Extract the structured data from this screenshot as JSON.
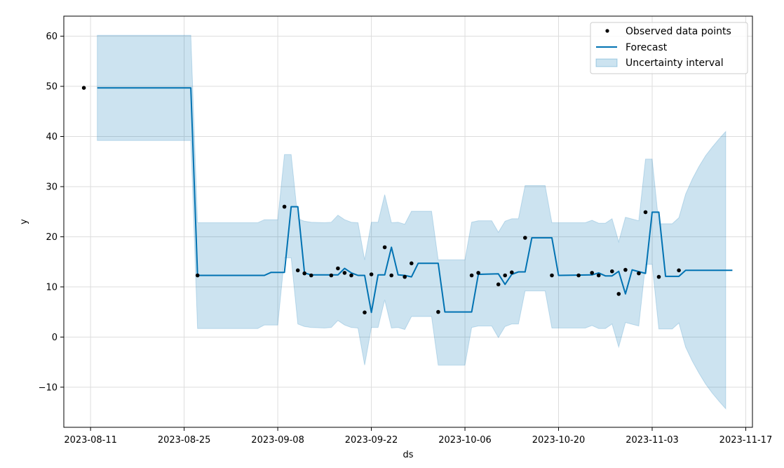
{
  "chart_data": {
    "type": "line",
    "xlabel": "ds",
    "ylabel": "y",
    "xlim": [
      "2023-08-07",
      "2023-11-18"
    ],
    "ylim": [
      -18,
      64
    ],
    "x_ticks": [
      "2023-08-11",
      "2023-08-25",
      "2023-09-08",
      "2023-09-22",
      "2023-10-06",
      "2023-10-20",
      "2023-11-03",
      "2023-11-17"
    ],
    "y_ticks": [
      -10,
      0,
      10,
      20,
      30,
      40,
      50,
      60
    ],
    "y_tick_labels": [
      "−10",
      "0",
      "10",
      "20",
      "30",
      "40",
      "50",
      "60"
    ],
    "grid": true,
    "legend_position": "top-right",
    "colors": {
      "forecast": "#0072B2",
      "interval": "#0072B2",
      "points": "#000000",
      "grid": "#dddddd"
    },
    "series": [
      {
        "name": "Observed data points",
        "kind": "scatter",
        "points": [
          [
            "2023-08-10",
            49.7
          ],
          [
            "2023-08-27",
            12.3
          ],
          [
            "2023-09-09",
            26.0
          ],
          [
            "2023-09-11",
            13.3
          ],
          [
            "2023-09-12",
            12.7
          ],
          [
            "2023-09-13",
            12.3
          ],
          [
            "2023-09-16",
            12.3
          ],
          [
            "2023-09-17",
            13.7
          ],
          [
            "2023-09-18",
            12.8
          ],
          [
            "2023-09-19",
            12.3
          ],
          [
            "2023-09-21",
            4.9
          ],
          [
            "2023-09-22",
            12.5
          ],
          [
            "2023-09-24",
            17.9
          ],
          [
            "2023-09-25",
            12.3
          ],
          [
            "2023-09-27",
            12.0
          ],
          [
            "2023-09-28",
            14.7
          ],
          [
            "2023-10-02",
            5.0
          ],
          [
            "2023-10-07",
            12.3
          ],
          [
            "2023-10-08",
            12.8
          ],
          [
            "2023-10-11",
            10.5
          ],
          [
            "2023-10-12",
            12.3
          ],
          [
            "2023-10-13",
            12.9
          ],
          [
            "2023-10-15",
            19.8
          ],
          [
            "2023-10-19",
            12.3
          ],
          [
            "2023-10-23",
            12.3
          ],
          [
            "2023-10-25",
            12.8
          ],
          [
            "2023-10-26",
            12.3
          ],
          [
            "2023-10-28",
            13.1
          ],
          [
            "2023-10-29",
            8.6
          ],
          [
            "2023-10-30",
            13.4
          ],
          [
            "2023-11-01",
            12.7
          ],
          [
            "2023-11-02",
            24.9
          ],
          [
            "2023-11-04",
            12.0
          ],
          [
            "2023-11-07",
            13.3
          ]
        ]
      },
      {
        "name": "Forecast",
        "kind": "line",
        "points": [
          [
            "2023-08-12",
            49.7
          ],
          [
            "2023-08-26",
            49.7
          ],
          [
            "2023-08-27",
            12.3
          ],
          [
            "2023-09-06",
            12.3
          ],
          [
            "2023-09-07",
            12.9
          ],
          [
            "2023-09-09",
            12.9
          ],
          [
            "2023-09-10",
            26.0
          ],
          [
            "2023-09-11",
            26.0
          ],
          [
            "2023-09-12",
            12.8
          ],
          [
            "2023-09-13",
            12.4
          ],
          [
            "2023-09-17",
            12.4
          ],
          [
            "2023-09-18",
            13.7
          ],
          [
            "2023-09-19",
            12.8
          ],
          [
            "2023-09-20",
            12.3
          ],
          [
            "2023-09-21",
            12.3
          ],
          [
            "2023-09-22",
            4.9
          ],
          [
            "2023-09-23",
            12.4
          ],
          [
            "2023-09-24",
            12.4
          ],
          [
            "2023-09-25",
            17.9
          ],
          [
            "2023-09-26",
            12.4
          ],
          [
            "2023-09-27",
            12.3
          ],
          [
            "2023-09-28",
            12.0
          ],
          [
            "2023-09-29",
            14.7
          ],
          [
            "2023-10-02",
            14.7
          ],
          [
            "2023-10-03",
            5.0
          ],
          [
            "2023-10-07",
            5.0
          ],
          [
            "2023-10-08",
            12.5
          ],
          [
            "2023-10-11",
            12.6
          ],
          [
            "2023-10-12",
            10.5
          ],
          [
            "2023-10-13",
            12.5
          ],
          [
            "2023-10-14",
            13.0
          ],
          [
            "2023-10-15",
            13.0
          ],
          [
            "2023-10-16",
            19.8
          ],
          [
            "2023-10-19",
            19.8
          ],
          [
            "2023-10-20",
            12.3
          ],
          [
            "2023-10-25",
            12.4
          ],
          [
            "2023-10-26",
            12.8
          ],
          [
            "2023-10-27",
            12.2
          ],
          [
            "2023-10-28",
            12.2
          ],
          [
            "2023-10-29",
            13.1
          ],
          [
            "2023-10-30",
            8.6
          ],
          [
            "2023-10-31",
            13.4
          ],
          [
            "2023-11-02",
            12.7
          ],
          [
            "2023-11-03",
            24.9
          ],
          [
            "2023-11-04",
            24.9
          ],
          [
            "2023-11-05",
            12.1
          ],
          [
            "2023-11-07",
            12.1
          ],
          [
            "2023-11-08",
            13.3
          ],
          [
            "2023-11-15",
            13.3
          ]
        ]
      },
      {
        "name": "Uncertainty interval",
        "kind": "band",
        "points": [
          [
            "2023-08-12",
            39.2,
            60.2
          ],
          [
            "2023-08-26",
            39.2,
            60.2
          ],
          [
            "2023-08-27",
            1.7,
            22.8
          ],
          [
            "2023-09-05",
            1.7,
            22.8
          ],
          [
            "2023-09-06",
            2.4,
            23.4
          ],
          [
            "2023-09-08",
            2.4,
            23.4
          ],
          [
            "2023-09-09",
            15.8,
            36.4
          ],
          [
            "2023-09-10",
            15.8,
            36.4
          ],
          [
            "2023-09-11",
            2.6,
            23.6
          ],
          [
            "2023-09-12",
            2.1,
            23.1
          ],
          [
            "2023-09-13",
            1.9,
            22.9
          ],
          [
            "2023-09-15",
            1.8,
            22.8
          ],
          [
            "2023-09-16",
            1.9,
            22.9
          ],
          [
            "2023-09-17",
            3.3,
            24.3
          ],
          [
            "2023-09-18",
            2.4,
            23.4
          ],
          [
            "2023-09-19",
            1.9,
            22.9
          ],
          [
            "2023-09-20",
            1.8,
            22.8
          ],
          [
            "2023-09-21",
            -5.6,
            15.4
          ],
          [
            "2023-09-22",
            1.9,
            22.9
          ],
          [
            "2023-09-23",
            1.9,
            22.9
          ],
          [
            "2023-09-24",
            7.4,
            28.4
          ],
          [
            "2023-09-25",
            1.8,
            22.8
          ],
          [
            "2023-09-26",
            1.9,
            22.9
          ],
          [
            "2023-09-27",
            1.5,
            22.5
          ],
          [
            "2023-09-28",
            4.1,
            25.1
          ],
          [
            "2023-10-01",
            4.1,
            25.1
          ],
          [
            "2023-10-02",
            -5.6,
            15.4
          ],
          [
            "2023-10-06",
            -5.6,
            15.4
          ],
          [
            "2023-10-07",
            1.9,
            22.9
          ],
          [
            "2023-10-08",
            2.2,
            23.2
          ],
          [
            "2023-10-10",
            2.2,
            23.2
          ],
          [
            "2023-10-11",
            -0.1,
            20.9
          ],
          [
            "2023-10-12",
            2.1,
            23.1
          ],
          [
            "2023-10-13",
            2.6,
            23.6
          ],
          [
            "2023-10-14",
            2.6,
            23.6
          ],
          [
            "2023-10-15",
            9.2,
            30.2
          ],
          [
            "2023-10-18",
            9.2,
            30.2
          ],
          [
            "2023-10-19",
            1.8,
            22.8
          ],
          [
            "2023-10-24",
            1.8,
            22.8
          ],
          [
            "2023-10-25",
            2.3,
            23.3
          ],
          [
            "2023-10-26",
            1.7,
            22.7
          ],
          [
            "2023-10-27",
            1.7,
            22.7
          ],
          [
            "2023-10-28",
            2.6,
            23.6
          ],
          [
            "2023-10-29",
            -2.0,
            19.0
          ],
          [
            "2023-10-30",
            2.9,
            23.9
          ],
          [
            "2023-11-01",
            2.2,
            23.2
          ],
          [
            "2023-11-02",
            14.5,
            35.5
          ],
          [
            "2023-11-03",
            14.5,
            35.5
          ],
          [
            "2023-11-04",
            1.6,
            22.6
          ],
          [
            "2023-11-06",
            1.6,
            22.6
          ],
          [
            "2023-11-07",
            2.8,
            23.8
          ],
          [
            "2023-11-08",
            -2.0,
            28.5
          ],
          [
            "2023-11-09",
            -4.8,
            31.5
          ],
          [
            "2023-11-10",
            -7.2,
            34.0
          ],
          [
            "2023-11-11",
            -9.4,
            36.2
          ],
          [
            "2023-11-12",
            -11.2,
            37.9
          ],
          [
            "2023-11-13",
            -12.8,
            39.5
          ],
          [
            "2023-11-14",
            -14.3,
            41.0
          ]
        ]
      }
    ]
  }
}
